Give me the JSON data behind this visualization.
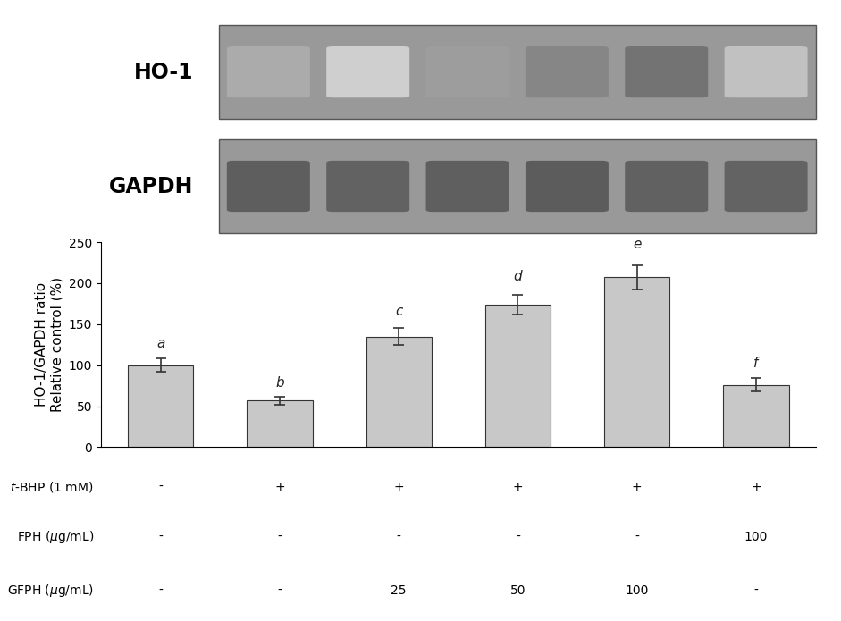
{
  "bar_values": [
    100,
    57,
    135,
    174,
    207,
    76
  ],
  "bar_errors": [
    8,
    5,
    10,
    12,
    15,
    8
  ],
  "bar_color": "#c8c8c8",
  "bar_edgecolor": "#333333",
  "bar_width": 0.55,
  "ylim": [
    0,
    250
  ],
  "yticks": [
    0,
    50,
    100,
    150,
    200,
    250
  ],
  "ylabel": "HO-1/GAPDH ratio\nRelative control (%)",
  "letters": [
    "a",
    "b",
    "c",
    "d",
    "e",
    "f"
  ],
  "letter_offsets": [
    10,
    8,
    12,
    14,
    17,
    10
  ],
  "table_rows": {
    "t_BHP": [
      "-",
      "+",
      "+",
      "+",
      "+",
      "+"
    ],
    "FPH": [
      "-",
      "-",
      "-",
      "-",
      "-",
      "100"
    ],
    "GFPH": [
      "-",
      "-",
      "25",
      "50",
      "100",
      "-"
    ]
  },
  "background_color": "#ffffff",
  "ho1_label": "HO-1",
  "gapdh_label": "GAPDH",
  "ho1_intensities": [
    0.45,
    0.2,
    0.55,
    0.72,
    0.85,
    0.3
  ],
  "gapdh_intensities": [
    0.75,
    0.72,
    0.74,
    0.76,
    0.73,
    0.71
  ]
}
